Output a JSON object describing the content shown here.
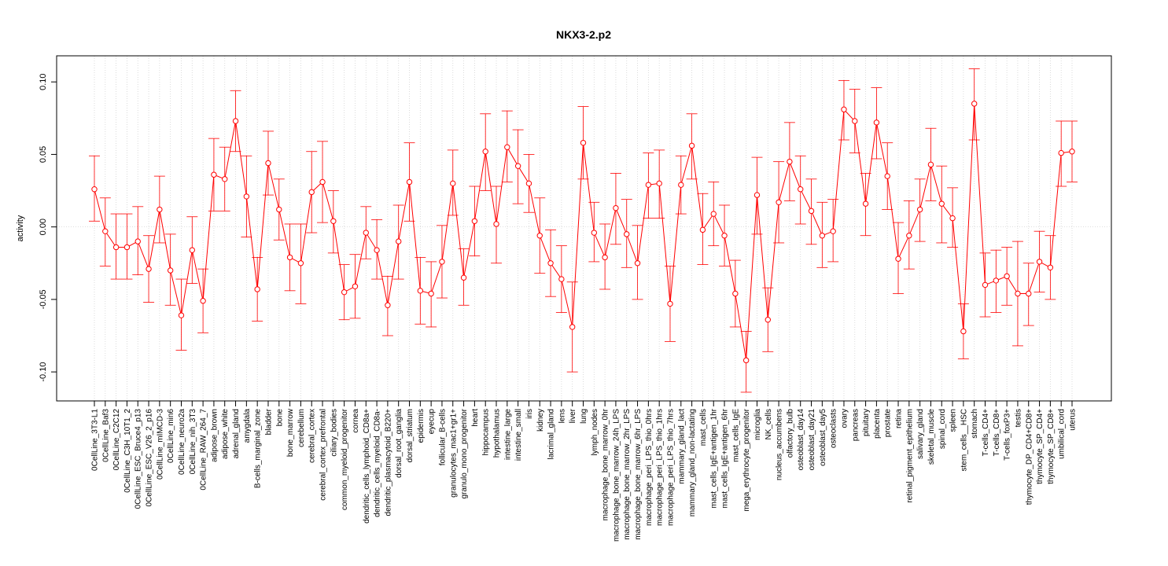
{
  "chart_data": {
    "type": "line",
    "title": "NKX3-2.p2",
    "xlabel": "",
    "ylabel": "activity",
    "ylim": [
      -0.12,
      0.118
    ],
    "yticks": [
      -0.1,
      -0.05,
      0.0,
      0.05,
      0.1
    ],
    "ytick_labels": [
      "-0.10",
      "-0.05",
      "0.00",
      "0.05",
      "0.10"
    ],
    "grid": "vertical dotted at each category; horizontal dotted at y=0",
    "color": "#ff0000",
    "categories": [
      "0CellLine_3T3-L1",
      "0CellLine_Baf3",
      "0CellLine_C2C12",
      "0CellLine_C3H_10T1_2",
      "0CellLine_ESC_Bruce4_p13",
      "0CellLine_ESC_V26_2_p16",
      "0CellLine_mIMCD-3",
      "0CellLine_min6",
      "0CellLine_neuro2a",
      "0CellLine_nih_3T3",
      "0CellLine_RAW_264_7",
      "adipose_brown",
      "adipose_white",
      "adrenal_gland",
      "amygdala",
      "B-cells_marginal_zone",
      "bladder",
      "bone",
      "bone_marrow",
      "cerebellum",
      "cerebral_cortex",
      "cerebral_cortex_prefrontal",
      "ciliary_bodies",
      "common_myeloid_progenitor",
      "cornea",
      "dendritic_cells_lymphoid_CD8a+",
      "dendritic_cells_myeloid_CD8a-",
      "dendritic_plasmacytoid_B220+",
      "dorsal_root_ganglia",
      "dorsal_striatum",
      "epidermis",
      "eyecup",
      "follicular_B-cells",
      "granulocytes_mac1+gr1+",
      "granulo_mono_progenitor",
      "heart",
      "hippocampus",
      "hypothalamus",
      "intestine_large",
      "intestine_small",
      "iris",
      "kidney",
      "lacrimal_gland",
      "lens",
      "liver",
      "lung",
      "lymph_nodes",
      "macrophage_bone_marrow_0hr",
      "macrophage_bone_marrow_24h_LPS",
      "macrophage_bone_marrow_2hr_LPS",
      "macrophage_bone_marrow_6hr_LPS",
      "macrophage_peri_LPS_thio_0hrs",
      "macrophage_peri_LPS_thio_1hrs",
      "macrophage_peri_LPS_thio_7hrs",
      "mammary_gland_lact",
      "mammary_gland_non-lactating",
      "mast_cells",
      "mast_cells_IgE+antigen_1hr",
      "mast_cells_IgE+antigen_6hr",
      "mast_cells_IgE",
      "mega_erythrocyte_progenitor",
      "microglia",
      "NK_cells",
      "nucleus_accumbens",
      "olfactory_bulb",
      "osteoblast_day14",
      "osteoblast_day21",
      "osteoblast_day5",
      "osteoclasts",
      "ovary",
      "pancreas",
      "pituitary",
      "placenta",
      "prostate",
      "retina",
      "retinal_pigment_epithelium",
      "salivary_gland",
      "skeletal_muscle",
      "spinal_cord",
      "spleen",
      "stem_cells__HSC",
      "stomach",
      "T-cells_CD4+",
      "T-cells_CD8+",
      "T-cells_foxP3+",
      "testis",
      "thymocyte_DP_CD4+CD8+",
      "thymocyte_SP_CD4+",
      "thymocyte_SP_CD8+",
      "umbilical_cord",
      "uterus"
    ],
    "series": [
      {
        "values": [
          0.026,
          -0.003,
          -0.014,
          -0.014,
          -0.01,
          -0.029,
          0.012,
          -0.03,
          -0.061,
          -0.016,
          -0.051,
          0.036,
          0.033,
          0.073,
          0.021,
          -0.043,
          0.044,
          0.012,
          -0.021,
          -0.025,
          0.024,
          0.031,
          0.004,
          -0.045,
          -0.041,
          -0.004,
          -0.016,
          -0.054,
          -0.01,
          0.031,
          -0.044,
          -0.046,
          -0.024,
          0.03,
          -0.035,
          0.004,
          0.052,
          0.002,
          0.055,
          0.042,
          0.03,
          -0.006,
          -0.025,
          -0.036,
          -0.069,
          0.058,
          -0.004,
          -0.021,
          0.013,
          -0.005,
          -0.025,
          0.029,
          0.03,
          -0.053,
          0.029,
          0.056,
          -0.002,
          0.009,
          -0.006,
          -0.046,
          -0.092,
          0.022,
          -0.064,
          0.017,
          0.045,
          0.026,
          0.011,
          -0.006,
          -0.003,
          0.081,
          0.073,
          0.016,
          0.072,
          0.035,
          -0.022,
          -0.006,
          0.012,
          0.043,
          0.016,
          0.006,
          -0.072,
          0.085,
          -0.04,
          -0.037,
          -0.034,
          -0.046,
          -0.046,
          -0.024,
          -0.028,
          0.051,
          0.052
        ],
        "error_low": [
          0.004,
          -0.027,
          -0.036,
          -0.036,
          -0.033,
          -0.052,
          -0.011,
          -0.054,
          -0.085,
          -0.039,
          -0.073,
          0.011,
          0.011,
          0.052,
          -0.007,
          -0.065,
          0.022,
          -0.009,
          -0.044,
          -0.053,
          -0.004,
          0.003,
          -0.018,
          -0.064,
          -0.063,
          -0.022,
          -0.036,
          -0.075,
          -0.036,
          0.004,
          -0.067,
          -0.069,
          -0.049,
          0.008,
          -0.054,
          -0.02,
          0.025,
          -0.025,
          0.031,
          0.016,
          0.01,
          -0.032,
          -0.048,
          -0.059,
          -0.1,
          0.033,
          -0.024,
          -0.043,
          -0.012,
          -0.028,
          -0.05,
          0.006,
          0.006,
          -0.079,
          0.009,
          0.033,
          -0.026,
          -0.013,
          -0.027,
          -0.069,
          -0.114,
          -0.005,
          -0.086,
          -0.011,
          0.018,
          0.002,
          -0.012,
          -0.028,
          -0.024,
          0.06,
          0.051,
          -0.006,
          0.047,
          0.012,
          -0.046,
          -0.029,
          -0.01,
          0.018,
          -0.011,
          -0.014,
          -0.091,
          0.06,
          -0.062,
          -0.059,
          -0.054,
          -0.082,
          -0.068,
          -0.045,
          -0.05,
          0.028,
          0.031
        ],
        "error_high": [
          0.049,
          0.02,
          0.009,
          0.009,
          0.014,
          -0.006,
          0.035,
          -0.005,
          -0.036,
          0.007,
          -0.029,
          0.061,
          0.055,
          0.094,
          0.049,
          -0.021,
          0.066,
          0.033,
          0.002,
          0.002,
          0.052,
          0.059,
          0.025,
          -0.026,
          -0.019,
          0.014,
          0.005,
          -0.034,
          0.015,
          0.058,
          -0.021,
          -0.024,
          0.001,
          0.053,
          -0.015,
          0.028,
          0.078,
          0.028,
          0.08,
          0.067,
          0.05,
          0.02,
          -0.002,
          -0.013,
          -0.038,
          0.083,
          0.017,
          0.002,
          0.037,
          0.019,
          0.001,
          0.051,
          0.053,
          -0.027,
          0.049,
          0.078,
          0.023,
          0.031,
          0.015,
          -0.023,
          -0.072,
          0.048,
          -0.042,
          0.045,
          0.072,
          0.049,
          0.033,
          0.017,
          0.019,
          0.101,
          0.095,
          0.037,
          0.096,
          0.058,
          0.003,
          0.018,
          0.033,
          0.068,
          0.042,
          0.027,
          -0.053,
          0.109,
          -0.018,
          -0.016,
          -0.014,
          -0.01,
          -0.025,
          -0.003,
          -0.006,
          0.073,
          0.073
        ]
      }
    ]
  }
}
